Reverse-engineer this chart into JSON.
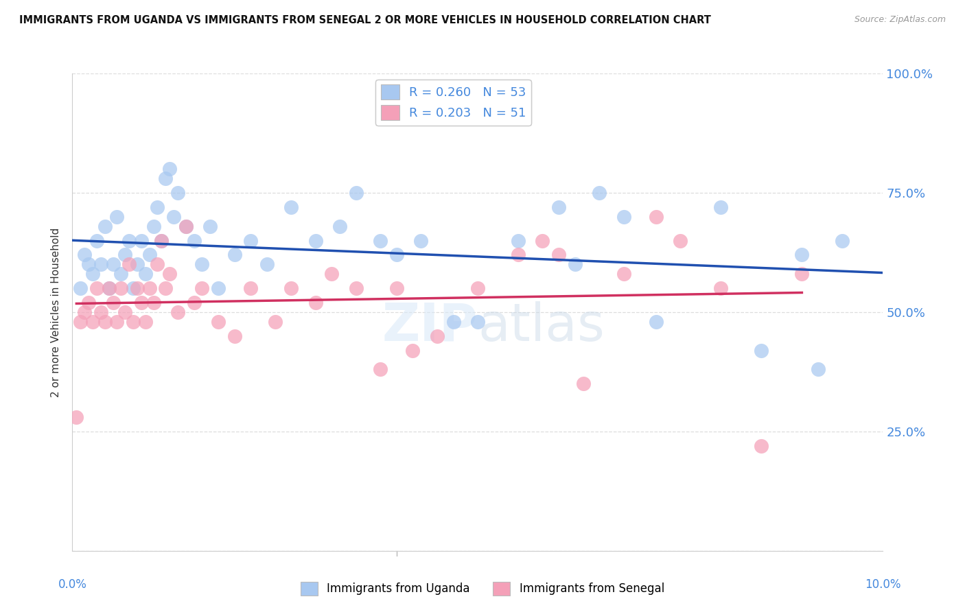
{
  "title": "IMMIGRANTS FROM UGANDA VS IMMIGRANTS FROM SENEGAL 2 OR MORE VEHICLES IN HOUSEHOLD CORRELATION CHART",
  "source": "Source: ZipAtlas.com",
  "ylabel": "2 or more Vehicles in Household",
  "xlim": [
    0.0,
    10.0
  ],
  "ylim": [
    0.0,
    100.0
  ],
  "yticks": [
    0,
    25,
    50,
    75,
    100
  ],
  "ytick_labels": [
    "",
    "25.0%",
    "50.0%",
    "75.0%",
    "100.0%"
  ],
  "xticks": [
    0,
    2,
    4,
    6,
    8,
    10
  ],
  "legend_uganda": "Immigrants from Uganda",
  "legend_senegal": "Immigrants from Senegal",
  "r_uganda": 0.26,
  "n_uganda": 53,
  "r_senegal": 0.203,
  "n_senegal": 51,
  "uganda_color": "#A8C8F0",
  "senegal_color": "#F4A0B8",
  "uganda_line_color": "#2050B0",
  "senegal_line_color": "#D03060",
  "background_color": "#FFFFFF",
  "grid_color": "#DDDDDD",
  "axis_label_color": "#4488DD",
  "title_color": "#111111",
  "source_color": "#999999",
  "uganda_x": [
    0.1,
    0.15,
    0.2,
    0.25,
    0.3,
    0.35,
    0.4,
    0.45,
    0.5,
    0.55,
    0.6,
    0.65,
    0.7,
    0.75,
    0.8,
    0.85,
    0.9,
    0.95,
    1.0,
    1.05,
    1.1,
    1.15,
    1.2,
    1.25,
    1.3,
    1.4,
    1.5,
    1.6,
    1.7,
    1.8,
    2.0,
    2.2,
    2.4,
    2.7,
    3.0,
    3.3,
    3.5,
    3.8,
    4.0,
    4.3,
    4.7,
    5.0,
    5.5,
    6.0,
    6.2,
    6.5,
    6.8,
    7.2,
    8.0,
    8.5,
    9.0,
    9.2,
    9.5
  ],
  "uganda_y": [
    55,
    62,
    60,
    58,
    65,
    60,
    68,
    55,
    60,
    70,
    58,
    62,
    65,
    55,
    60,
    65,
    58,
    62,
    68,
    72,
    65,
    78,
    80,
    70,
    75,
    68,
    65,
    60,
    68,
    55,
    62,
    65,
    60,
    72,
    65,
    68,
    75,
    65,
    62,
    65,
    48,
    48,
    65,
    72,
    60,
    75,
    70,
    48,
    72,
    42,
    62,
    38,
    65
  ],
  "senegal_x": [
    0.05,
    0.1,
    0.15,
    0.2,
    0.25,
    0.3,
    0.35,
    0.4,
    0.45,
    0.5,
    0.55,
    0.6,
    0.65,
    0.7,
    0.75,
    0.8,
    0.85,
    0.9,
    0.95,
    1.0,
    1.05,
    1.1,
    1.15,
    1.2,
    1.3,
    1.4,
    1.5,
    1.6,
    1.8,
    2.0,
    2.2,
    2.5,
    2.7,
    3.0,
    3.2,
    3.5,
    3.8,
    4.0,
    4.2,
    4.5,
    5.0,
    5.5,
    5.8,
    6.0,
    6.3,
    6.8,
    7.2,
    7.5,
    8.0,
    8.5,
    9.0
  ],
  "senegal_y": [
    28,
    48,
    50,
    52,
    48,
    55,
    50,
    48,
    55,
    52,
    48,
    55,
    50,
    60,
    48,
    55,
    52,
    48,
    55,
    52,
    60,
    65,
    55,
    58,
    50,
    68,
    52,
    55,
    48,
    45,
    55,
    48,
    55,
    52,
    58,
    55,
    38,
    55,
    42,
    45,
    55,
    62,
    65,
    62,
    35,
    58,
    70,
    65,
    55,
    22,
    58
  ]
}
